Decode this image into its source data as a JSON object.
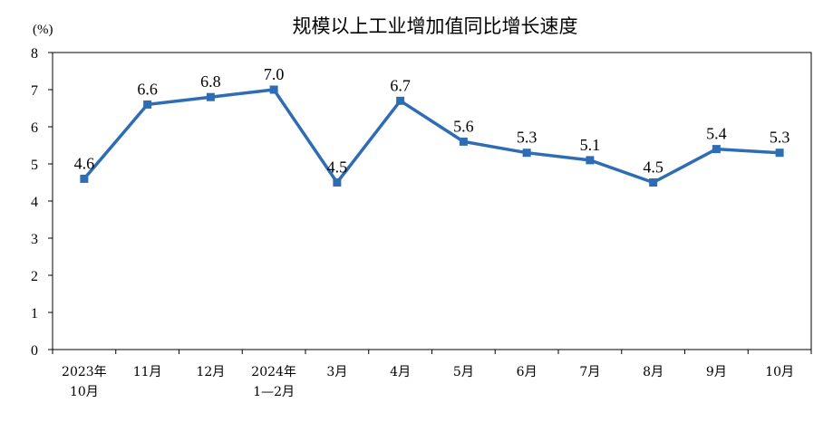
{
  "chart_data": {
    "type": "line",
    "title": "规模以上工业增加值同比增长速度",
    "unit": "(%)",
    "categories": [
      [
        "2023年",
        "10月"
      ],
      [
        "11月"
      ],
      [
        "12月"
      ],
      [
        "2024年",
        "1—2月"
      ],
      [
        "3月"
      ],
      [
        "4月"
      ],
      [
        "5月"
      ],
      [
        "6月"
      ],
      [
        "7月"
      ],
      [
        "8月"
      ],
      [
        "9月"
      ],
      [
        "10月"
      ]
    ],
    "series": [
      {
        "values": [
          4.6,
          6.6,
          6.8,
          7.0,
          4.5,
          6.7,
          5.6,
          5.3,
          5.1,
          4.5,
          5.4,
          5.3
        ]
      }
    ],
    "data_labels": [
      "4.6",
      "6.6",
      "6.8",
      "7.0",
      "4.5",
      "6.7",
      "5.6",
      "5.3",
      "5.1",
      "4.5",
      "5.4",
      "5.3"
    ],
    "ylim": [
      0,
      8
    ],
    "yticks": [
      0,
      1,
      2,
      3,
      4,
      5,
      6,
      7,
      8
    ],
    "grid": false,
    "line_color": "#2E6DB4"
  }
}
